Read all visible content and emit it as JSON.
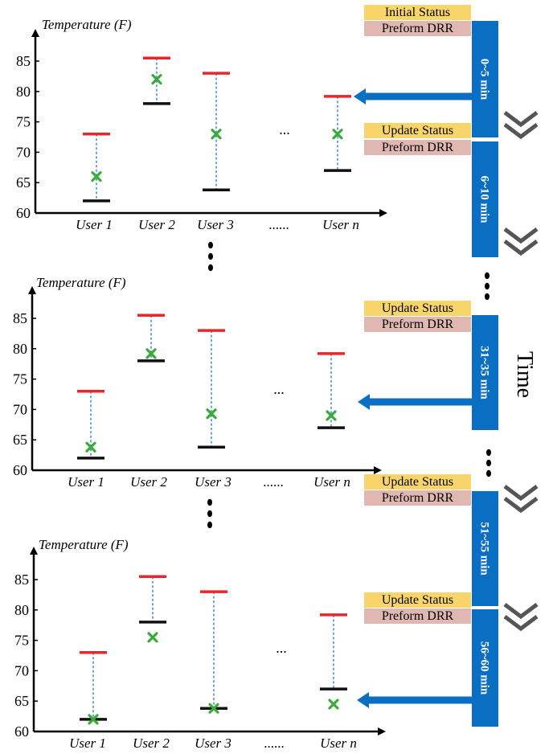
{
  "charts": [
    {
      "ylabel": "Temperature (F)",
      "yticks": [
        "85",
        "80",
        "75",
        "70",
        "65",
        "60"
      ],
      "xlabels": [
        "User 1",
        "User 2",
        "User 3",
        "......",
        "User n"
      ],
      "gap_label": "...",
      "users": [
        {
          "name": "User 1",
          "upper": 73,
          "lower": 62,
          "current": 66
        },
        {
          "name": "User 2",
          "upper": 85.5,
          "lower": 78,
          "current": 82
        },
        {
          "name": "User 3",
          "upper": 83,
          "lower": 63.8,
          "current": 73
        },
        {
          "name": "User n",
          "upper": 79.2,
          "lower": 67,
          "current": 73
        }
      ]
    },
    {
      "ylabel": "Temperature (F)",
      "yticks": [
        "85",
        "80",
        "75",
        "70",
        "65",
        "60"
      ],
      "xlabels": [
        "User 1",
        "User 2",
        "User 3",
        "......",
        "User n"
      ],
      "gap_label": "...",
      "users": [
        {
          "name": "User 1",
          "upper": 73,
          "lower": 62,
          "current": 63.8
        },
        {
          "name": "User 2",
          "upper": 85.5,
          "lower": 78,
          "current": 79.2
        },
        {
          "name": "User 3",
          "upper": 83,
          "lower": 63.8,
          "current": 69.3
        },
        {
          "name": "User n",
          "upper": 79.2,
          "lower": 67,
          "current": 69
        }
      ]
    },
    {
      "ylabel": "Temperature (F)",
      "yticks": [
        "85",
        "80",
        "75",
        "70",
        "65",
        "60"
      ],
      "xlabels": [
        "User 1",
        "User 2",
        "User 3",
        "......",
        "User n"
      ],
      "gap_label": "...",
      "users": [
        {
          "name": "User 1",
          "upper": 73,
          "lower": 62,
          "current": 62
        },
        {
          "name": "User 2",
          "upper": 85.5,
          "lower": 78,
          "current": 75.5
        },
        {
          "name": "User 3",
          "upper": 83,
          "lower": 63.8,
          "current": 63.8
        },
        {
          "name": "User n",
          "upper": 79.2,
          "lower": 67,
          "current": 64.5
        }
      ]
    }
  ],
  "timeline": {
    "axis_label": "Time",
    "intervals": [
      "0~5 min",
      "6~10 min",
      "31~35 min",
      "51~55 min",
      "56~60 min"
    ],
    "status_labels": [
      "Initial Status",
      "Update Status",
      "Update Status",
      "Update Status",
      "Update Status"
    ],
    "drr_label": "Preform DRR"
  },
  "colors": {
    "upper_bound": "#e8262b",
    "lower_bound": "#111111",
    "current": "#3aab3a",
    "range_line": "#4a90d9",
    "timeline_bar": "#0a6fc2",
    "status_box": "#f7d56a",
    "drr_box": "#e1b7b2",
    "chevron": "#555555"
  }
}
